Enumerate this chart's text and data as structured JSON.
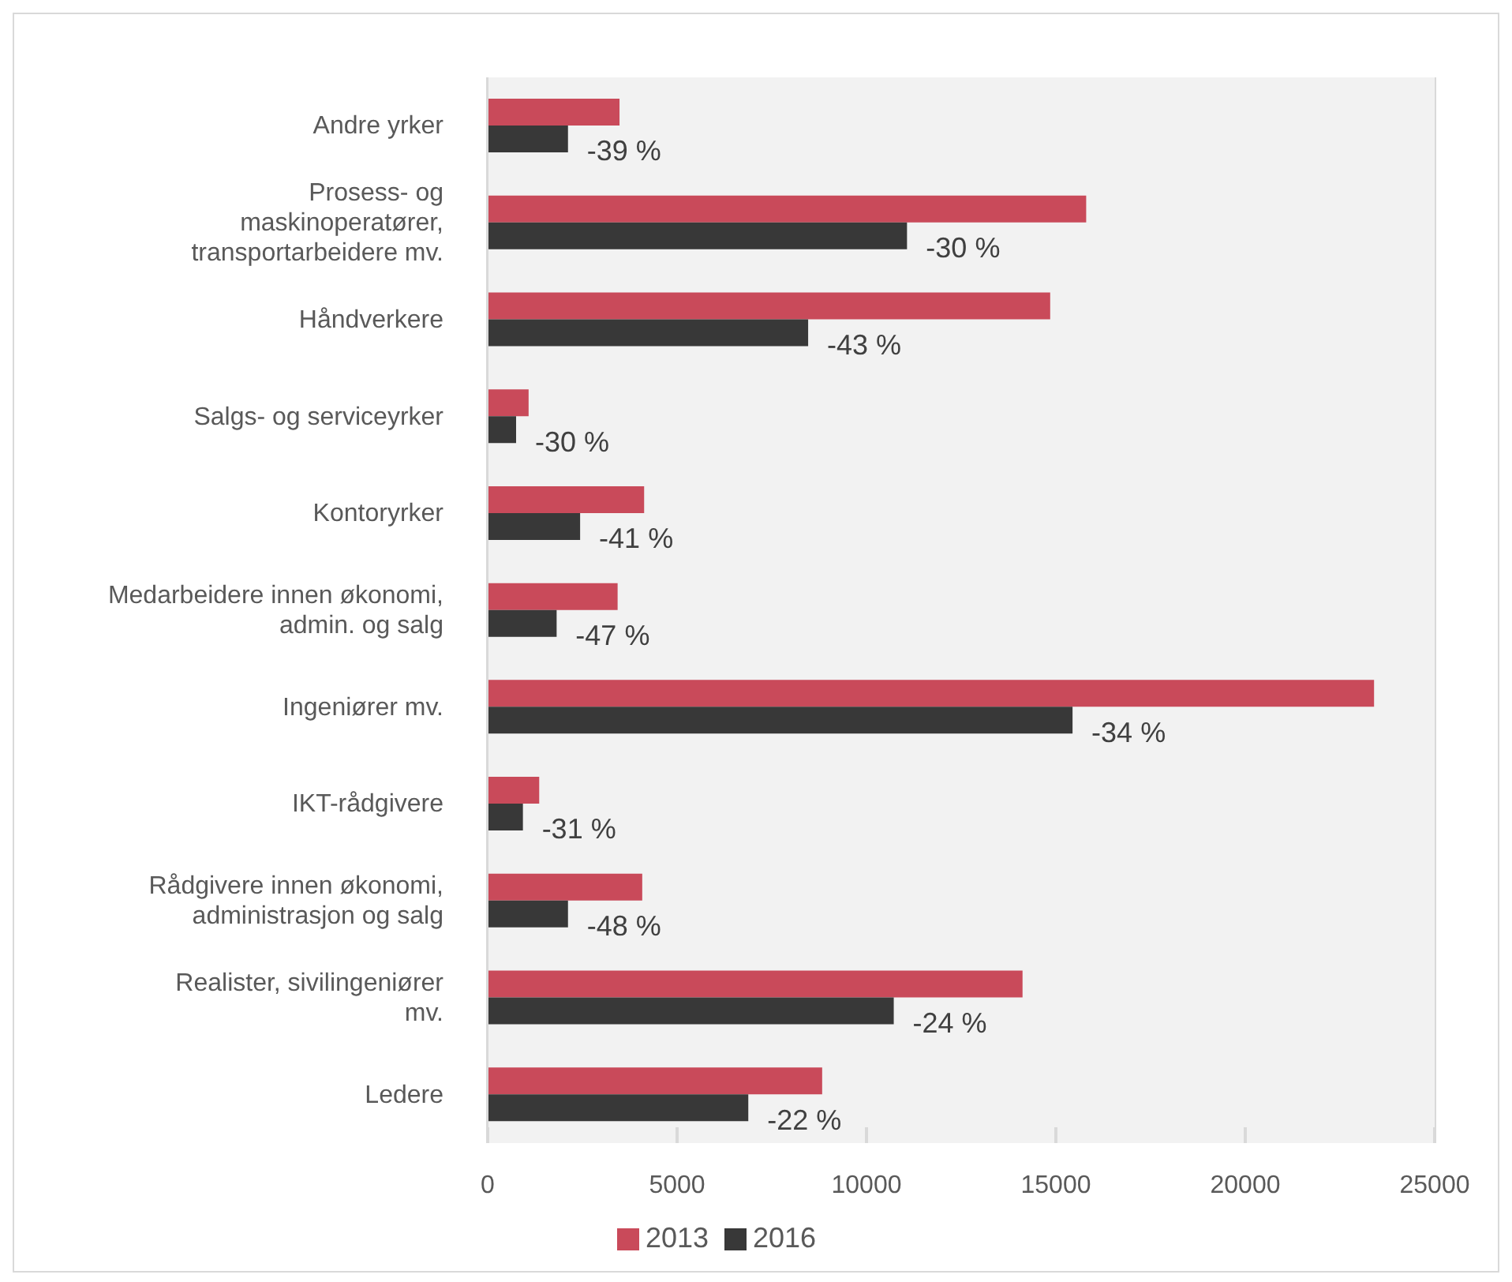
{
  "chart_data": {
    "type": "bar",
    "orientation": "horizontal",
    "categories": [
      "Andre yrker",
      "Prosess- og maskinoperatører, transportarbeidere mv.",
      "Håndverkere",
      "Salgs- og serviceyrker",
      "Kontoryrker",
      "Medarbeidere innen økonomi, admin. og salg",
      "Ingeniører mv.",
      "IKT-rådgivere",
      "Rådgivere innen økonomi, administrasjon og salg",
      "Realister, sivilingeniører mv.",
      "Ledere"
    ],
    "series": [
      {
        "name": "2013",
        "color": "#c94a5a",
        "values": [
          3480,
          15800,
          14850,
          1080,
          4130,
          3430,
          23400,
          1360,
          4080,
          14120,
          8830
        ]
      },
      {
        "name": "2016",
        "color": "#383838",
        "values": [
          2120,
          11070,
          8460,
          750,
          2440,
          1820,
          15440,
          930,
          2120,
          10720,
          6880
        ]
      }
    ],
    "annotations": [
      {
        "text": "-39 %",
        "x": 2120,
        "y": "Andre yrker"
      },
      {
        "text": "-30 %",
        "x": 11070,
        "y": "Prosess- og maskinoperatører, transportarbeidere mv."
      },
      {
        "text": "-43 %",
        "x": 8460,
        "y": "Håndverkere"
      },
      {
        "text": "-30 %",
        "x": 750,
        "y": "Salgs- og serviceyrker"
      },
      {
        "text": "-41 %",
        "x": 2440,
        "y": "Kontoryrker"
      },
      {
        "text": "-47 %",
        "x": 1820,
        "y": "Medarbeidere innen økonomi, admin. og salg"
      },
      {
        "text": "-34 %",
        "x": 15440,
        "y": "Ingeniører mv."
      },
      {
        "text": "-31 %",
        "x": 930,
        "y": "IKT-rådgivere"
      },
      {
        "text": "-48 %",
        "x": 2120,
        "y": "Rådgivere innen økonomi, administrasjon og salg"
      },
      {
        "text": "-24 %",
        "x": 10720,
        "y": "Realister, sivilingeniører mv."
      },
      {
        "text": "-22 %",
        "x": 6880,
        "y": "Ledere"
      }
    ],
    "xlim": [
      0,
      25000
    ],
    "xticks": [
      0,
      5000,
      10000,
      15000,
      20000,
      25000
    ],
    "grid": "x",
    "legend": "bottom"
  }
}
